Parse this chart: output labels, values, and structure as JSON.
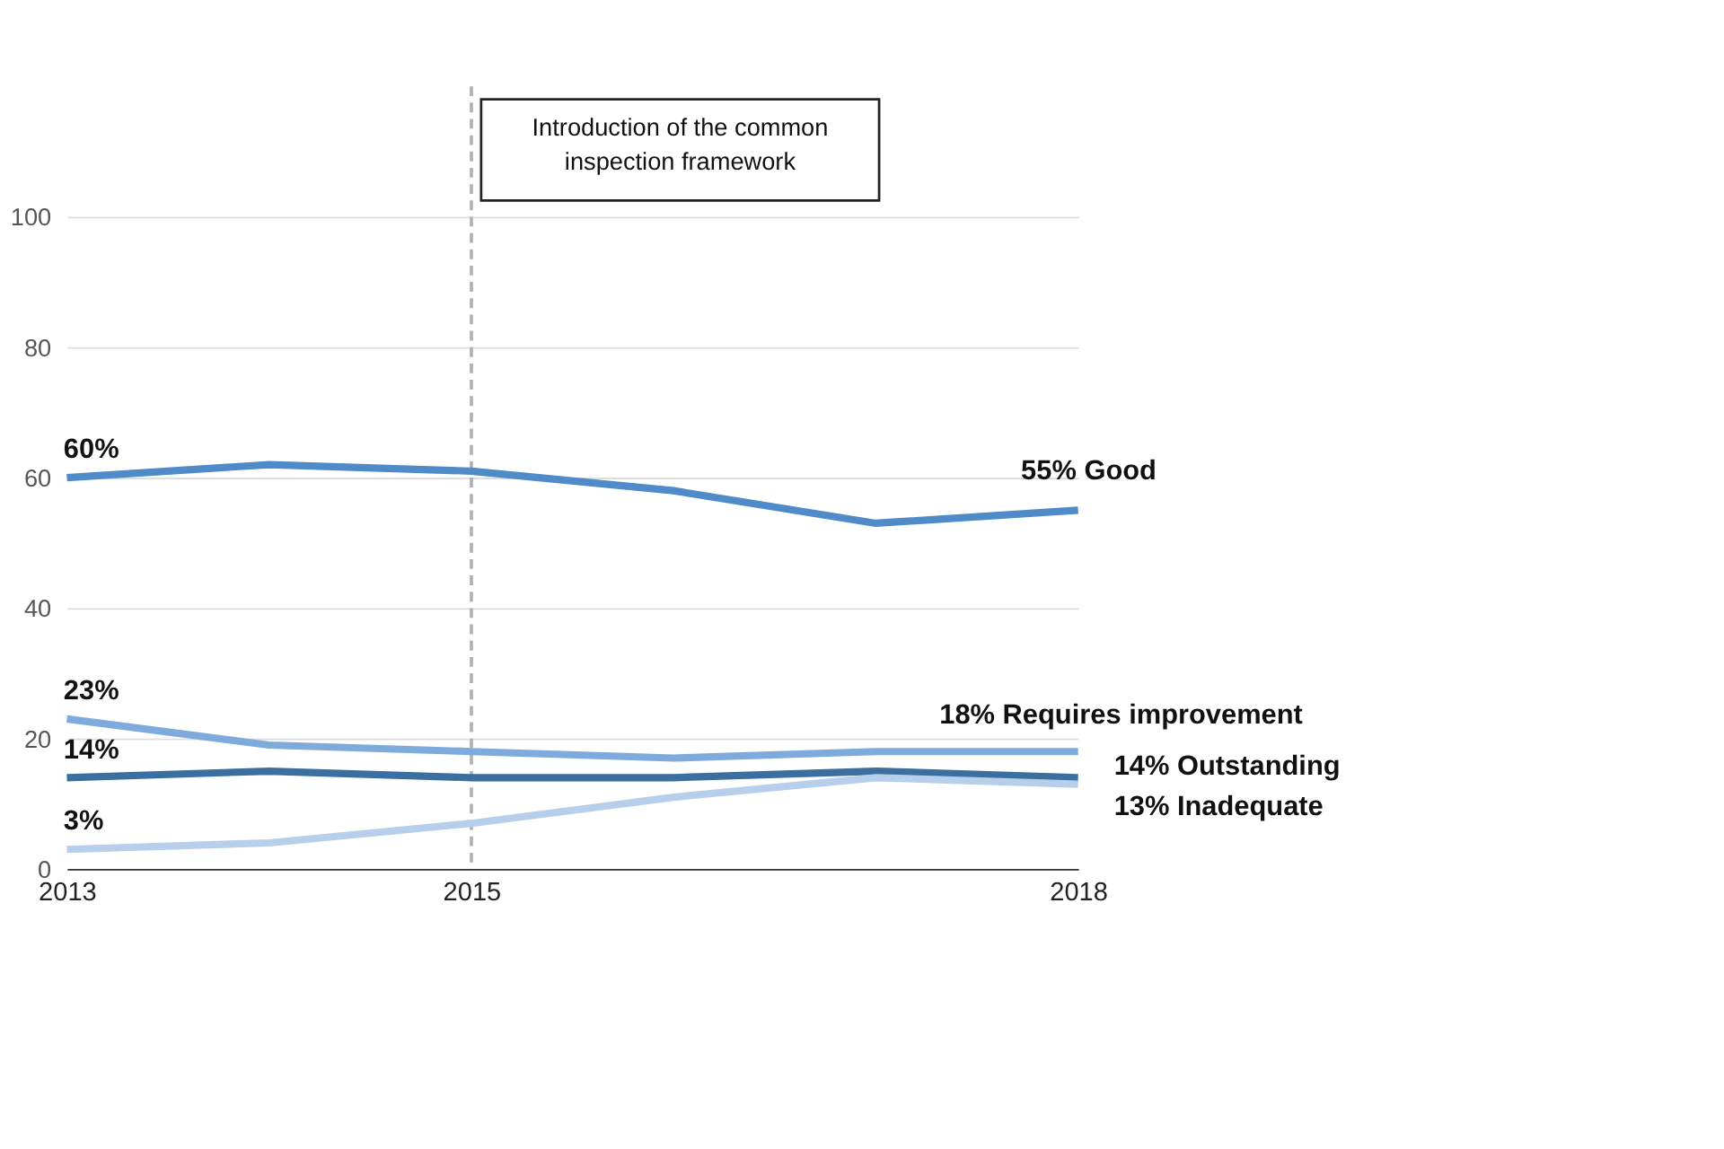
{
  "chart_data": {
    "type": "line",
    "x": [
      2013,
      2014,
      2015,
      2016,
      2017,
      2018
    ],
    "series": [
      {
        "name": "Good",
        "color": "#4f8ac9",
        "values": [
          60,
          62,
          61,
          58,
          53,
          55
        ],
        "value_labels": [
          "60%",
          null,
          null,
          null,
          null,
          "55%"
        ]
      },
      {
        "name": "Requires improvement",
        "color": "#7eaadc",
        "values": [
          23,
          19,
          18,
          17,
          18,
          18
        ],
        "value_labels": [
          "23%",
          null,
          null,
          null,
          null,
          "18%"
        ]
      },
      {
        "name": "Outstanding",
        "color": "#3b6f9f",
        "values": [
          14,
          15,
          14,
          14,
          15,
          14
        ],
        "value_labels": [
          "14%",
          null,
          null,
          null,
          null,
          "14%"
        ]
      },
      {
        "name": "Inadequate",
        "color": "#b8cfeb",
        "values": [
          3,
          4,
          7,
          11,
          14,
          13
        ],
        "value_labels": [
          "3%",
          null,
          null,
          null,
          null,
          "13%"
        ]
      }
    ],
    "xlim": [
      2013,
      2018
    ],
    "xticks": [
      2013,
      2015,
      2018
    ],
    "ylim": [
      0,
      120
    ],
    "yticks": [
      0,
      20,
      40,
      60,
      80,
      100
    ],
    "grid": "y",
    "marker": "none",
    "line_style": "solid",
    "ref_lines": [
      {
        "axis": "x",
        "value": 2015,
        "label": "Introduction of the common inspection framework",
        "color": "#b0b0b0",
        "line_style": "dashed"
      }
    ]
  }
}
